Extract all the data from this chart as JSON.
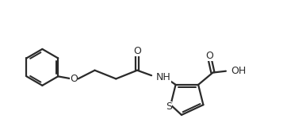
{
  "background_color": "#ffffff",
  "line_color": "#2a2a2a",
  "line_width": 1.6,
  "font_size": 8.5,
  "figsize": [
    3.86,
    1.64
  ],
  "dpi": 100,
  "xlim": [
    0,
    10
  ],
  "ylim": [
    0,
    4.25
  ]
}
